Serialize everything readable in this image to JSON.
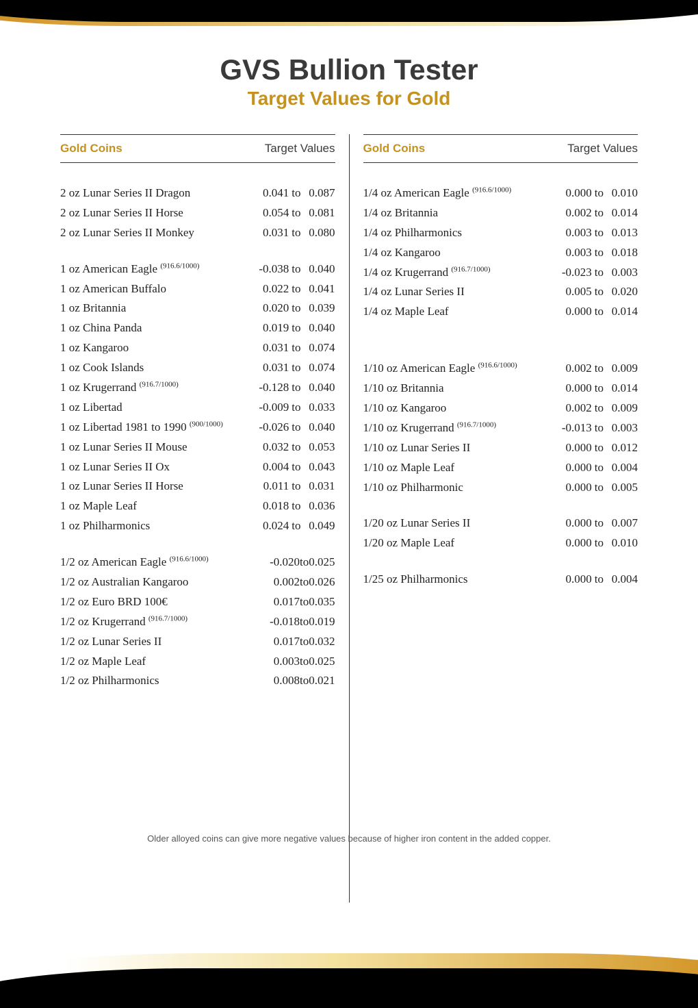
{
  "title": "GVS Bullion Tester",
  "subtitle": "Target Values for Gold",
  "header_left": "Gold Coins",
  "header_right": "Target Values",
  "to_word": "to",
  "footnote": "Older alloyed coins can give more negative values because of higher iron content in the added copper.",
  "colors": {
    "accent": "#c4921f",
    "text": "#3a3a3a",
    "body": "#222222"
  },
  "left_groups": [
    [
      {
        "name": "2 oz Lunar Series II Dragon",
        "sup": "",
        "low": "0.041",
        "high": "0.087"
      },
      {
        "name": "2 oz Lunar Series II Horse",
        "sup": "",
        "low": "0.054",
        "high": "0.081"
      },
      {
        "name": "2 oz Lunar Series II Monkey",
        "sup": "",
        "low": "0.031",
        "high": "0.080"
      }
    ],
    [
      {
        "name": "1 oz American Eagle",
        "sup": "(916.6/1000)",
        "low": "-0.038",
        "high": "0.040"
      },
      {
        "name": "1 oz American Buffalo",
        "sup": "",
        "low": "0.022",
        "high": "0.041"
      },
      {
        "name": "1 oz Britannia",
        "sup": "",
        "low": "0.020",
        "high": "0.039"
      },
      {
        "name": "1 oz China Panda",
        "sup": "",
        "low": "0.019",
        "high": "0.040"
      },
      {
        "name": "1 oz Kangaroo",
        "sup": "",
        "low": "0.031",
        "high": "0.074"
      },
      {
        "name": "1 oz Cook Islands",
        "sup": "",
        "low": "0.031",
        "high": "0.074"
      },
      {
        "name": "1 oz Krugerrand",
        "sup": "(916.7/1000)",
        "low": "-0.128",
        "high": "0.040"
      },
      {
        "name": "1 oz Libertad",
        "sup": "",
        "low": "-0.009",
        "high": "0.033"
      },
      {
        "name": "1 oz Libertad 1981 to 1990",
        "sup": "(900/1000)",
        "low": "-0.026",
        "high": "0.040"
      },
      {
        "name": "1 oz Lunar Series II Mouse",
        "sup": "",
        "low": "0.032",
        "high": "0.053"
      },
      {
        "name": "1 oz Lunar Series II Ox",
        "sup": "",
        "low": "0.004",
        "high": "0.043"
      },
      {
        "name": "1 oz Lunar Series II Horse",
        "sup": "",
        "low": "0.011",
        "high": "0.031"
      },
      {
        "name": "1 oz Maple Leaf",
        "sup": "",
        "low": "0.018",
        "high": "0.036"
      },
      {
        "name": "1 oz Philharmonics",
        "sup": "",
        "low": "0.024",
        "high": "0.049"
      }
    ],
    [
      {
        "name": "1/2 oz American Eagle",
        "sup": "(916.6/1000)",
        "low": "-0.020",
        "high": "0.025",
        "nogap": true
      },
      {
        "name": "1/2 oz Australian Kangaroo",
        "sup": "",
        "low": "0.002",
        "high": "0.026",
        "nogap": true
      },
      {
        "name": "1/2 oz Euro BRD 100€",
        "sup": "",
        "low": "0.017",
        "high": "0.035",
        "nogap": true
      },
      {
        "name": "1/2 oz Krugerrand",
        "sup": "(916.7/1000)",
        "low": "-0.018",
        "high": "0.019",
        "nogap": true
      },
      {
        "name": "1/2 oz Lunar Series II",
        "sup": "",
        "low": "0.017",
        "high": "0.032",
        "nogap": true
      },
      {
        "name": "1/2 oz Maple Leaf",
        "sup": "",
        "low": "0.003",
        "high": "0.025",
        "nogap": true
      },
      {
        "name": "1/2 oz Philharmonics",
        "sup": "",
        "low": "0.008",
        "high": "0.021",
        "nogap": true
      }
    ]
  ],
  "right_groups": [
    [
      {
        "name": "1/4 oz American Eagle",
        "sup": "(916.6/1000)",
        "low": "0.000",
        "high": "0.010"
      },
      {
        "name": "1/4 oz Britannia",
        "sup": "",
        "low": "0.002",
        "high": "0.014"
      },
      {
        "name": "1/4 oz Philharmonics",
        "sup": "",
        "low": "0.003",
        "high": "0.013"
      },
      {
        "name": "1/4 oz Kangaroo",
        "sup": "",
        "low": "0.003",
        "high": "0.018"
      },
      {
        "name": "1/4 oz Krugerrand",
        "sup": "(916.7/1000)",
        "low": "-0.023",
        "high": "0.003"
      },
      {
        "name": "1/4 oz Lunar Series II",
        "sup": "",
        "low": "0.005",
        "high": "0.020"
      },
      {
        "name": "1/4 oz Maple Leaf",
        "sup": "",
        "low": "0.000",
        "high": "0.014"
      }
    ],
    [
      {
        "name": "1/10 oz American Eagle",
        "sup": "(916.6/1000)",
        "low": "0.002",
        "high": "0.009"
      },
      {
        "name": "1/10 oz Britannia",
        "sup": "",
        "low": "0.000",
        "high": "0.014"
      },
      {
        "name": "1/10 oz Kangaroo",
        "sup": "",
        "low": "0.002",
        "high": "0.009"
      },
      {
        "name": "1/10 oz Krugerrand",
        "sup": "(916.7/1000)",
        "low": "-0.013",
        "high": "0.003"
      },
      {
        "name": "1/10 oz Lunar Series II",
        "sup": "",
        "low": "0.000",
        "high": "0.012"
      },
      {
        "name": "1/10 oz Maple Leaf",
        "sup": "",
        "low": "0.000",
        "high": "0.004"
      },
      {
        "name": "1/10 oz Philharmonic",
        "sup": "",
        "low": "0.000",
        "high": "0.005"
      }
    ],
    [
      {
        "name": "1/20 oz Lunar Series II",
        "sup": "",
        "low": "0.000",
        "high": "0.007"
      },
      {
        "name": "1/20 oz Maple Leaf",
        "sup": "",
        "low": "0.000",
        "high": "0.010"
      }
    ],
    [
      {
        "name": "1/25 oz Philharmonics",
        "sup": "",
        "low": "0.000",
        "high": "0.004"
      }
    ]
  ]
}
